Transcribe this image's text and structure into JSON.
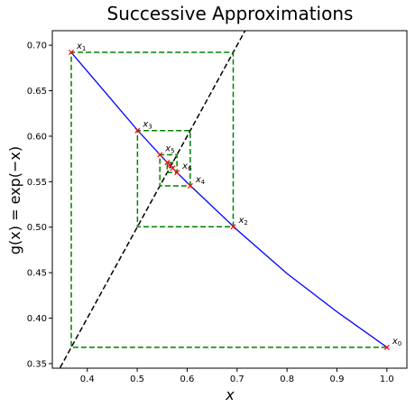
{
  "chart_data": {
    "type": "line",
    "title": "Successive Approximations",
    "xlabel": "x",
    "ylabel": "g(x) = exp(−x)",
    "xlim": [
      0.33,
      1.04
    ],
    "ylim": [
      0.345,
      0.716
    ],
    "xticks": [
      0.4,
      0.5,
      0.6,
      0.7,
      0.8,
      0.9,
      1.0
    ],
    "yticks": [
      0.35,
      0.4,
      0.45,
      0.5,
      0.55,
      0.6,
      0.65,
      0.7
    ],
    "xtick_labels": [
      "0.4",
      "0.5",
      "0.6",
      "0.7",
      "0.8",
      "0.9",
      "1.0"
    ],
    "ytick_labels": [
      "0.35",
      "0.40",
      "0.45",
      "0.50",
      "0.55",
      "0.60",
      "0.65",
      "0.70"
    ],
    "grid": false,
    "legend": false,
    "colors": {
      "curve": "#0000ff",
      "diagonal": "#000000",
      "cobweb": "#008000",
      "markers": "#ff0000"
    },
    "series": [
      {
        "style": "dashed",
        "color": "#000000",
        "x": [
          0.33,
          0.72
        ],
        "y": [
          0.33,
          0.72
        ]
      },
      {
        "style": "solid",
        "color": "#0000ff",
        "x": [
          0.368,
          0.5,
          0.55,
          0.567,
          0.6,
          0.7,
          0.8,
          0.9,
          1.0
        ],
        "y": [
          0.692,
          0.607,
          0.577,
          0.567,
          0.549,
          0.497,
          0.449,
          0.407,
          0.368
        ]
      },
      {
        "style": "dashed",
        "color": "#008000",
        "x": [
          1.0,
          0.3679,
          0.3679,
          0.6922,
          0.6922,
          0.5005,
          0.5005,
          0.6062,
          0.6062,
          0.5454,
          0.5454,
          0.5796,
          0.5796,
          0.5601,
          0.5601,
          0.5711,
          0.5711
        ],
        "y": [
          0.3679,
          0.3679,
          0.6922,
          0.6922,
          0.5005,
          0.5005,
          0.6062,
          0.6062,
          0.5454,
          0.5454,
          0.5796,
          0.5796,
          0.5601,
          0.5601,
          0.5711,
          0.5711,
          0.5649
        ]
      }
    ],
    "points": [
      {
        "label": "x",
        "sub": "0",
        "x": 1.0,
        "y": 0.3679
      },
      {
        "label": "x",
        "sub": "1",
        "x": 0.3679,
        "y": 0.6922
      },
      {
        "label": "x",
        "sub": "2",
        "x": 0.6922,
        "y": 0.5005
      },
      {
        "label": "x",
        "sub": "3",
        "x": 0.5005,
        "y": 0.6062
      },
      {
        "label": "x",
        "sub": "4",
        "x": 0.6062,
        "y": 0.5454
      },
      {
        "label": "x",
        "sub": "5",
        "x": 0.5454,
        "y": 0.5796
      },
      {
        "label": "x",
        "sub": "6",
        "x": 0.5796,
        "y": 0.5601
      },
      {
        "label": "",
        "sub": "",
        "x": 0.5601,
        "y": 0.5711
      },
      {
        "label": "",
        "sub": "",
        "x": 0.5711,
        "y": 0.5649
      },
      {
        "label": "",
        "sub": "",
        "x": 0.5649,
        "y": 0.5684
      }
    ]
  }
}
